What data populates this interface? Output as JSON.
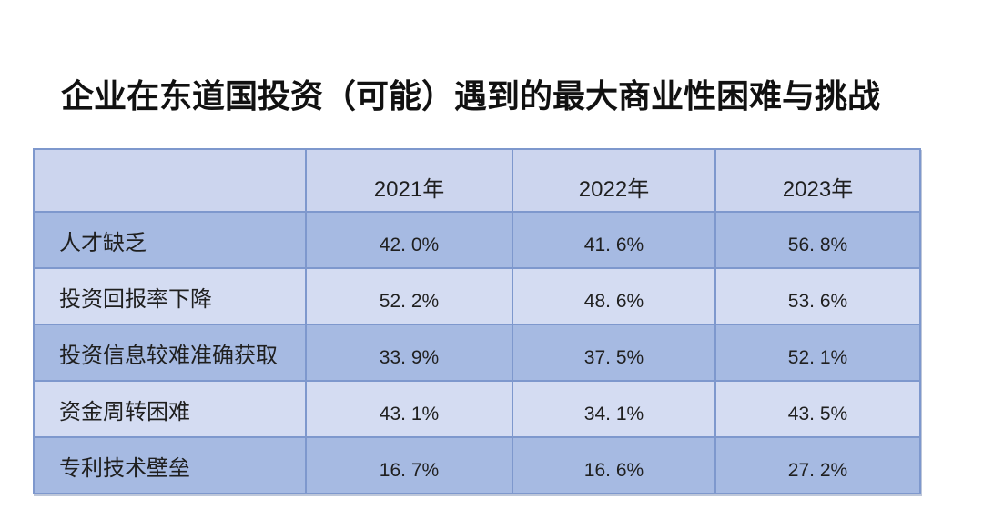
{
  "title": "企业在东道国投资（可能）遇到的最大商业性困难与挑战",
  "table": {
    "columns": [
      "",
      "2021年",
      "2022年",
      "2023年"
    ],
    "rows": [
      {
        "label": "人才缺乏",
        "values": [
          "42. 0%",
          "41. 6%",
          "56. 8%"
        ]
      },
      {
        "label": "投资回报率下降",
        "values": [
          "52. 2%",
          "48. 6%",
          "53. 6%"
        ]
      },
      {
        "label": "投资信息较难准确获取",
        "values": [
          "33. 9%",
          "37. 5%",
          "52. 1%"
        ]
      },
      {
        "label": "资金周转困难",
        "values": [
          "43. 1%",
          "34. 1%",
          "43. 5%"
        ]
      },
      {
        "label": "专利技术壁垒",
        "values": [
          "16. 7%",
          "16. 6%",
          "27. 2%"
        ]
      }
    ]
  },
  "colors": {
    "header_bg": "#ccd5ee",
    "row_dark_bg": "#a6bae2",
    "row_light_bg": "#d4dcf2",
    "border": "#7e98cd",
    "title_text": "#111111",
    "cell_text": "#1f1f1f"
  },
  "chart_data": {
    "type": "table",
    "title": "企业在东道国投资（可能）遇到的最大商业性困难与挑战",
    "categories": [
      "2021年",
      "2022年",
      "2023年"
    ],
    "series": [
      {
        "name": "人才缺乏",
        "values": [
          42.0,
          41.6,
          56.8
        ]
      },
      {
        "name": "投资回报率下降",
        "values": [
          52.2,
          48.6,
          53.6
        ]
      },
      {
        "name": "投资信息较难准确获取",
        "values": [
          33.9,
          37.5,
          52.1
        ]
      },
      {
        "name": "资金周转困难",
        "values": [
          43.1,
          34.1,
          43.5
        ]
      },
      {
        "name": "专利技术壁垒",
        "values": [
          16.7,
          16.6,
          27.2
        ]
      }
    ],
    "unit": "%",
    "layout": {
      "row_striping": true,
      "header_position": "top"
    }
  }
}
